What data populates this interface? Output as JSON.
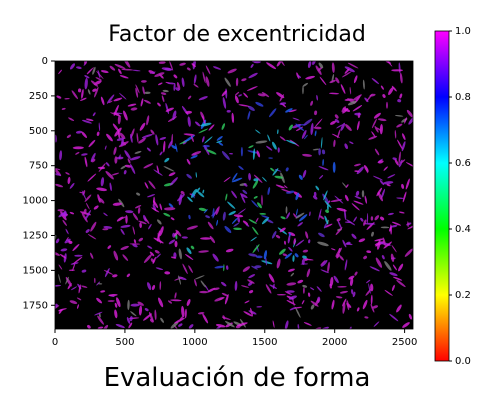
{
  "chart_data": {
    "type": "image",
    "title": "Factor de excentricidad",
    "xlabel": "Evaluación de forma",
    "xlim": [
      0,
      2560
    ],
    "ylim": [
      1920,
      0
    ],
    "xticks": [
      0,
      500,
      1000,
      1500,
      2000,
      2500
    ],
    "yticks": [
      0,
      250,
      500,
      750,
      1000,
      1250,
      1500,
      1750
    ],
    "colorbar": {
      "lim": [
        0,
        1
      ],
      "ticks": [
        {
          "value": 0,
          "label": "0.0"
        },
        {
          "value": 0.2,
          "label": "0.2"
        },
        {
          "value": 0.4,
          "label": "0.4"
        },
        {
          "value": 0.6,
          "label": "0.6"
        },
        {
          "value": 0.8,
          "label": "0.8"
        },
        {
          "value": 1,
          "label": "1.0"
        }
      ],
      "colors": [
        "#ff0000",
        "#ffff00",
        "#00ff00",
        "#00ffff",
        "#0000ff",
        "#ff00ff"
      ]
    }
  }
}
